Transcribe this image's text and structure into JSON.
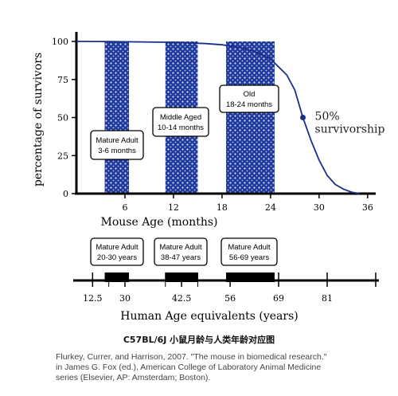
{
  "chart_data": [
    {
      "type": "line",
      "title": "",
      "xlabel": "Mouse Age (months)",
      "ylabel": "percentage of survivors",
      "xlim": [
        0,
        37
      ],
      "ylim": [
        0,
        100
      ],
      "x_ticks": [
        6,
        12,
        18,
        24,
        30,
        36
      ],
      "y_ticks": [
        0,
        25,
        50,
        75,
        100
      ],
      "series": [
        {
          "x": [
            0,
            4,
            8,
            12,
            16,
            18,
            20,
            22,
            24,
            26,
            27,
            28,
            29,
            30,
            31,
            32,
            33,
            34,
            35
          ],
          "y": [
            100,
            99.9,
            99.7,
            99.4,
            98.6,
            97.8,
            96.2,
            93.5,
            88.5,
            78,
            68,
            50,
            35,
            22,
            12,
            6,
            3,
            1,
            0
          ],
          "color": "#1a2f8a"
        }
      ],
      "marker": {
        "x": 28,
        "y": 50,
        "label_line1": "50%",
        "label_line2": "survivorship"
      },
      "shaded_bands": [
        {
          "from": 3.5,
          "to": 6.5,
          "label_line1": "Mature Adult",
          "label_line2": "3-6 months"
        },
        {
          "from": 11,
          "to": 15,
          "label_line1": "Middle Aged",
          "label_line2": "10-14 months"
        },
        {
          "from": 18.5,
          "to": 24.5,
          "label_line1": "Old",
          "label_line2": "18-24 months"
        }
      ],
      "band_color": "#1f3a9e"
    },
    {
      "type": "bar",
      "xlabel": "Human Age equivalents (years)",
      "ticks": [
        {
          "pos": 2,
          "label": "12.5"
        },
        {
          "pos": 6,
          "label": "30"
        },
        {
          "pos": 13,
          "label": "42.5"
        },
        {
          "pos": 19,
          "label": "56"
        },
        {
          "pos": 25,
          "label": "69"
        },
        {
          "pos": 31,
          "label": "81"
        },
        {
          "pos": 37,
          "label": ""
        }
      ],
      "minor_ticks": [
        4,
        11,
        15
      ],
      "bands": [
        {
          "from": 3.5,
          "to": 6.5,
          "label_line1": "Mature Adult",
          "label_line2": "20-30 years"
        },
        {
          "from": 11,
          "to": 15,
          "label_line1": "Mature Adult",
          "label_line2": "38-47 years"
        },
        {
          "from": 18.5,
          "to": 24.5,
          "label_line1": "Mature Adult",
          "label_line2": "56-69 years"
        }
      ]
    }
  ],
  "caption": {
    "title": "C57BL/6J 小鼠月龄与人类年龄对应图",
    "citation_lines": [
      "Flurkey, Currer, and Harrison, 2007. \"The mouse in biomedical  research.\"",
      "in James G. Fox (ed.), American College of Laboratory Animal Medicine",
      "series (Elsevier, AP: Amsterdam; Boston)."
    ]
  }
}
